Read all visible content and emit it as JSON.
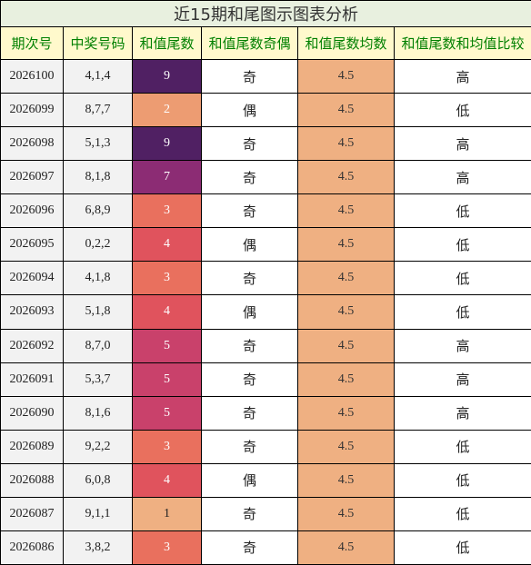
{
  "title": "近15期和尾图示图表分析",
  "headers": [
    "期次号",
    "中奖号码",
    "和值尾数",
    "和值尾数奇偶",
    "和值尾数均数",
    "和值尾数和均值比较"
  ],
  "colors": {
    "header_text": "#008000",
    "header_bg": "#fff9cc",
    "title_bg": "#e8f0df",
    "row_bg": "#f2f2f2",
    "avg_bg": "#efb082",
    "sum_tail_palette": {
      "1": "#efb082",
      "2": "#ed9c72",
      "3": "#e9705e",
      "4": "#e0535d",
      "5": "#c9416b",
      "7": "#8c2c74",
      "9": "#502063"
    }
  },
  "rows": [
    {
      "issue": "2026100",
      "numbers": "4,1,4",
      "sum_tail": "9",
      "parity": "奇",
      "avg": "4.5",
      "compare": "高"
    },
    {
      "issue": "2026099",
      "numbers": "8,7,7",
      "sum_tail": "2",
      "parity": "偶",
      "avg": "4.5",
      "compare": "低"
    },
    {
      "issue": "2026098",
      "numbers": "5,1,3",
      "sum_tail": "9",
      "parity": "奇",
      "avg": "4.5",
      "compare": "高"
    },
    {
      "issue": "2026097",
      "numbers": "8,1,8",
      "sum_tail": "7",
      "parity": "奇",
      "avg": "4.5",
      "compare": "高"
    },
    {
      "issue": "2026096",
      "numbers": "6,8,9",
      "sum_tail": "3",
      "parity": "奇",
      "avg": "4.5",
      "compare": "低"
    },
    {
      "issue": "2026095",
      "numbers": "0,2,2",
      "sum_tail": "4",
      "parity": "偶",
      "avg": "4.5",
      "compare": "低"
    },
    {
      "issue": "2026094",
      "numbers": "4,1,8",
      "sum_tail": "3",
      "parity": "奇",
      "avg": "4.5",
      "compare": "低"
    },
    {
      "issue": "2026093",
      "numbers": "5,1,8",
      "sum_tail": "4",
      "parity": "偶",
      "avg": "4.5",
      "compare": "低"
    },
    {
      "issue": "2026092",
      "numbers": "8,7,0",
      "sum_tail": "5",
      "parity": "奇",
      "avg": "4.5",
      "compare": "高"
    },
    {
      "issue": "2026091",
      "numbers": "5,3,7",
      "sum_tail": "5",
      "parity": "奇",
      "avg": "4.5",
      "compare": "高"
    },
    {
      "issue": "2026090",
      "numbers": "8,1,6",
      "sum_tail": "5",
      "parity": "奇",
      "avg": "4.5",
      "compare": "高"
    },
    {
      "issue": "2026089",
      "numbers": "9,2,2",
      "sum_tail": "3",
      "parity": "奇",
      "avg": "4.5",
      "compare": "低"
    },
    {
      "issue": "2026088",
      "numbers": "6,0,8",
      "sum_tail": "4",
      "parity": "偶",
      "avg": "4.5",
      "compare": "低"
    },
    {
      "issue": "2026087",
      "numbers": "9,1,1",
      "sum_tail": "1",
      "parity": "奇",
      "avg": "4.5",
      "compare": "低"
    },
    {
      "issue": "2026086",
      "numbers": "3,8,2",
      "sum_tail": "3",
      "parity": "奇",
      "avg": "4.5",
      "compare": "低"
    }
  ]
}
